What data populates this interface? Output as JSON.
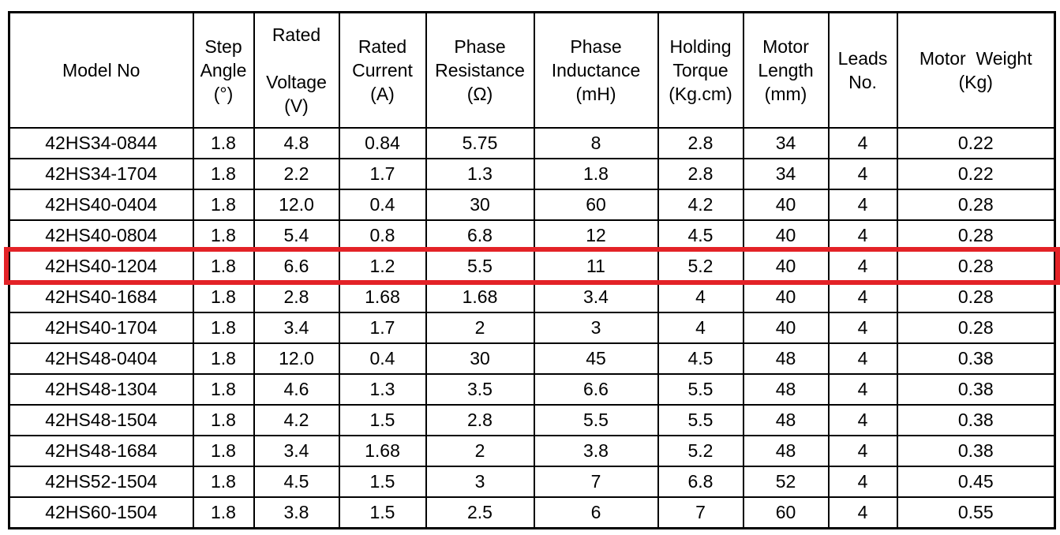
{
  "table": {
    "columns": [
      {
        "id": "model-no",
        "label": "Model No"
      },
      {
        "id": "step-angle",
        "label": "Step\nAngle\n(°)"
      },
      {
        "id": "rated-voltage",
        "label": "Rated\n\nVoltage\n(V)"
      },
      {
        "id": "rated-current",
        "label": "Rated\nCurrent\n(A)"
      },
      {
        "id": "phase-resistance",
        "label": "Phase\nResistance\n(Ω)"
      },
      {
        "id": "phase-inductance",
        "label": "Phase\nInductance\n(mH)"
      },
      {
        "id": "holding-torque",
        "label": "Holding\nTorque\n(Kg.cm)"
      },
      {
        "id": "motor-length",
        "label": "Motor\nLength\n(mm)"
      },
      {
        "id": "leads-no",
        "label": "Leads\nNo."
      },
      {
        "id": "motor-weight",
        "label": "Motor  Weight\n(Kg)"
      }
    ],
    "rows": [
      [
        "42HS34-0844",
        "1.8",
        "4.8",
        "0.84",
        "5.75",
        "8",
        "2.8",
        "34",
        "4",
        "0.22"
      ],
      [
        "42HS34-1704",
        "1.8",
        "2.2",
        "1.7",
        "1.3",
        "1.8",
        "2.8",
        "34",
        "4",
        "0.22"
      ],
      [
        "42HS40-0404",
        "1.8",
        "12.0",
        "0.4",
        "30",
        "60",
        "4.2",
        "40",
        "4",
        "0.28"
      ],
      [
        "42HS40-0804",
        "1.8",
        "5.4",
        "0.8",
        "6.8",
        "12",
        "4.5",
        "40",
        "4",
        "0.28"
      ],
      [
        "42HS40-1204",
        "1.8",
        "6.6",
        "1.2",
        "5.5",
        "11",
        "5.2",
        "40",
        "4",
        "0.28"
      ],
      [
        "42HS40-1684",
        "1.8",
        "2.8",
        "1.68",
        "1.68",
        "3.4",
        "4",
        "40",
        "4",
        "0.28"
      ],
      [
        "42HS40-1704",
        "1.8",
        "3.4",
        "1.7",
        "2",
        "3",
        "4",
        "40",
        "4",
        "0.28"
      ],
      [
        "42HS48-0404",
        "1.8",
        "12.0",
        "0.4",
        "30",
        "45",
        "4.5",
        "48",
        "4",
        "0.38"
      ],
      [
        "42HS48-1304",
        "1.8",
        "4.6",
        "1.3",
        "3.5",
        "6.6",
        "5.5",
        "48",
        "4",
        "0.38"
      ],
      [
        "42HS48-1504",
        "1.8",
        "4.2",
        "1.5",
        "2.8",
        "5.5",
        "5.5",
        "48",
        "4",
        "0.38"
      ],
      [
        "42HS48-1684",
        "1.8",
        "3.4",
        "1.68",
        "2",
        "3.8",
        "5.2",
        "48",
        "4",
        "0.38"
      ],
      [
        "42HS52-1504",
        "1.8",
        "4.5",
        "1.5",
        "3",
        "7",
        "6.8",
        "52",
        "4",
        "0.45"
      ],
      [
        "42HS60-1504",
        "1.8",
        "3.8",
        "1.5",
        "2.5",
        "6",
        "7",
        "60",
        "4",
        "0.55"
      ]
    ],
    "highlighted_row_index": 4,
    "highlighted_model": "42HS40-1204",
    "highlight_color": "#e32227",
    "grid_color": "#000000"
  }
}
